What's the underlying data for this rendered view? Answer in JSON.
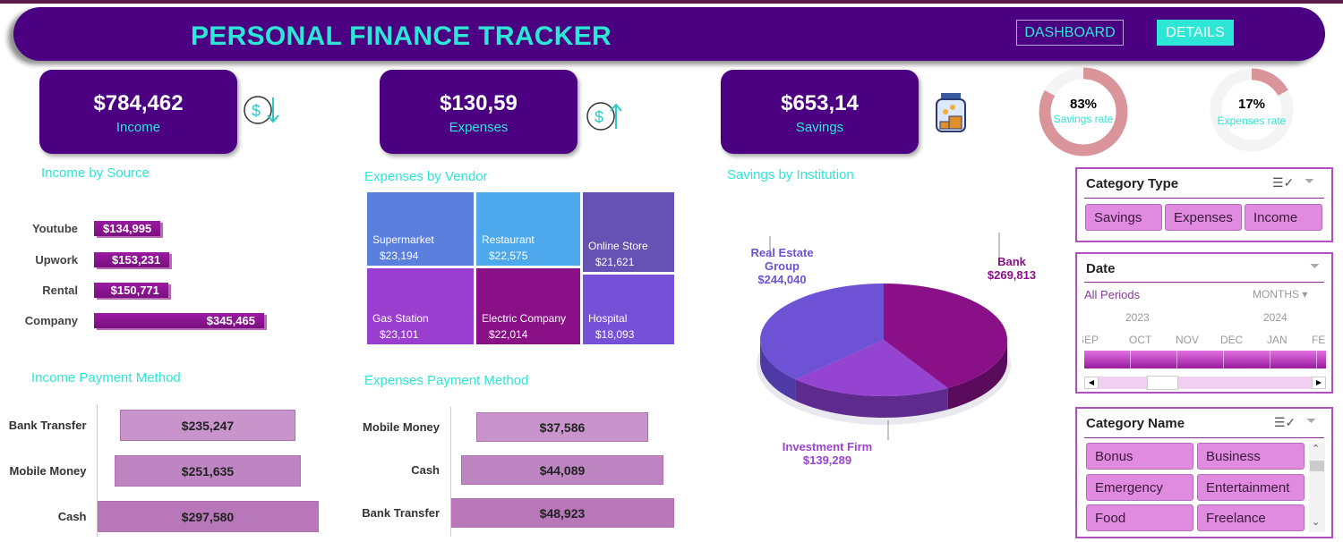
{
  "header": {
    "title": "PERSONAL FINANCE TRACKER",
    "nav": [
      "DASHBOARD",
      "DETAILS"
    ]
  },
  "kpis": [
    {
      "value": "$784,462",
      "label": "Income",
      "icon": "dollar-down-icon"
    },
    {
      "value": "$130,59",
      "label": "Expenses",
      "icon": "dollar-up-icon"
    },
    {
      "value": "$653,14",
      "label": "Savings",
      "icon": "savings-jar-icon"
    }
  ],
  "rates": [
    {
      "value": "83%",
      "label": "Savings rate",
      "fraction": 0.83
    },
    {
      "value": "17%",
      "label": "Expenses rate",
      "fraction": 0.17
    }
  ],
  "colors": {
    "brand": "#4b0082",
    "accent": "#2ee6d6",
    "ring": "#d9959a"
  },
  "chart_data": [
    {
      "type": "bar",
      "title": "Income by Source",
      "categories": [
        "Youtube",
        "Upwork",
        "Rental",
        "Company"
      ],
      "values": [
        134995,
        153231,
        150771,
        345465
      ],
      "labels": [
        "$134,995",
        "$153,231",
        "$150,771",
        "$345,465"
      ]
    },
    {
      "type": "treemap",
      "title": "Expenses by Vendor",
      "categories": [
        "Supermarket",
        "Restaurant",
        "Online Store",
        "Gas Station",
        "Electric Company",
        "Hospital"
      ],
      "values": [
        23194,
        22575,
        21621,
        23101,
        22014,
        18093
      ],
      "labels": [
        "$23,194",
        "$22,575",
        "$21,621",
        "$23,101",
        "$22,014",
        "$18,093"
      ]
    },
    {
      "type": "pie",
      "title": "Savings by Institution",
      "categories": [
        "Bank",
        "Investment Firm",
        "Real Estate Group"
      ],
      "values": [
        269813,
        139289,
        244040
      ],
      "labels": [
        "$269,813",
        "$139,289",
        "$244,040"
      ],
      "colors": [
        "#8a1088",
        "#9444d0",
        "#6e52d6"
      ]
    },
    {
      "type": "funnel",
      "title": "Income Payment Method",
      "categories": [
        "Bank Transfer",
        "Mobile Money",
        "Cash"
      ],
      "values": [
        235247,
        251635,
        297580
      ],
      "labels": [
        "$235,247",
        "$251,635",
        "$297,580"
      ]
    },
    {
      "type": "funnel",
      "title": "Expenses Payment Method",
      "categories": [
        "Mobile Money",
        "Cash",
        "Bank Transfer"
      ],
      "values": [
        37586,
        44089,
        48923
      ],
      "labels": [
        "$37,586",
        "$44,089",
        "$48,923"
      ]
    }
  ],
  "slicers": {
    "category_type": {
      "title": "Category Type",
      "items": [
        "Savings",
        "Expenses",
        "Income"
      ]
    },
    "date": {
      "title": "Date",
      "period": "All Periods",
      "unit": "MONTHS",
      "years": [
        "2023",
        "2024"
      ],
      "months": [
        "SEP",
        "OCT",
        "NOV",
        "DEC",
        "JAN",
        "FE"
      ]
    },
    "category_name": {
      "title": "Category Name",
      "items": [
        "Bonus",
        "Business",
        "Emergency",
        "Entertainment",
        "Food",
        "Freelance"
      ]
    }
  }
}
